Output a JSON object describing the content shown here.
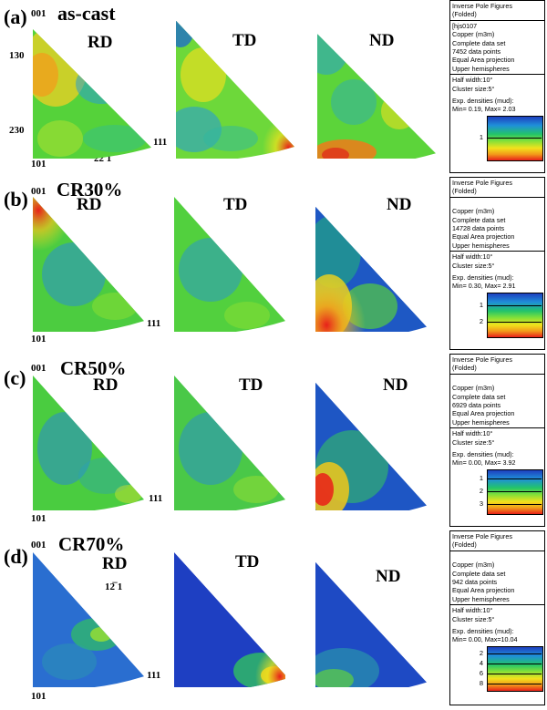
{
  "index_labels": {
    "i001": "001",
    "i101": "101",
    "i111": "111",
    "i130": "130",
    "i230": "230",
    "i221": "22̅ 1",
    "i121": "12̅ 1"
  },
  "directions": {
    "rd": "RD",
    "td": "TD",
    "nd": "ND"
  },
  "rows": [
    {
      "label": "(a)",
      "condition": "as-cast",
      "panel": {
        "title1": "Inverse Pole Figures",
        "title2": "(Folded)",
        "sample": "[hjs0107",
        "phase": "Copper (m3m)",
        "set": "Complete data set",
        "points": "7452 data points",
        "proj": "Equal Area projection",
        "hemi": "Upper hemispheres",
        "hw": "Half width:10°",
        "cs": "Cluster size:5°",
        "dens": "Exp. densities (mud):",
        "minmax": "Min= 0.19, Max= 2.03",
        "ticks": [
          "1"
        ]
      }
    },
    {
      "label": "(b)",
      "condition": "CR30%",
      "panel": {
        "title1": "Inverse Pole Figures",
        "title2": "(Folded)",
        "sample": "",
        "phase": "Copper (m3m)",
        "set": "Complete data set",
        "points": "14728 data points",
        "proj": "Equal Area projection",
        "hemi": "Upper hemispheres",
        "hw": "Half width:10°",
        "cs": "Cluster size:5°",
        "dens": "Exp. densities (mud):",
        "minmax": "Min= 0.30, Max= 2.91",
        "ticks": [
          "1",
          "2"
        ]
      }
    },
    {
      "label": "(c)",
      "condition": "CR50%",
      "panel": {
        "title1": "Inverse Pole Figures",
        "title2": "(Folded)",
        "sample": "",
        "phase": "Copper (m3m)",
        "set": "Complete data set",
        "points": "6929 data points",
        "proj": "Equal Area projection",
        "hemi": "Upper hemispheres",
        "hw": "Half width:10°",
        "cs": "Cluster size:5°",
        "dens": "Exp. densities (mud):",
        "minmax": "Min= 0.00, Max= 3.92",
        "ticks": [
          "1",
          "2",
          "3"
        ]
      }
    },
    {
      "label": "(d)",
      "condition": "CR70%",
      "panel": {
        "title1": "Inverse Pole Figures",
        "title2": "(Folded)",
        "sample": "",
        "phase": "Copper (m3m)",
        "set": "Complete data set",
        "points": "942 data points",
        "proj": "Equal Area projection",
        "hemi": "Upper hemispheres",
        "hw": "Half width:10°",
        "cs": "Cluster size:5°",
        "dens": "Exp. densities (mud):",
        "minmax": "Min= 0.00, Max=10.04",
        "ticks": [
          "2",
          "4",
          "6",
          "8"
        ]
      }
    }
  ]
}
